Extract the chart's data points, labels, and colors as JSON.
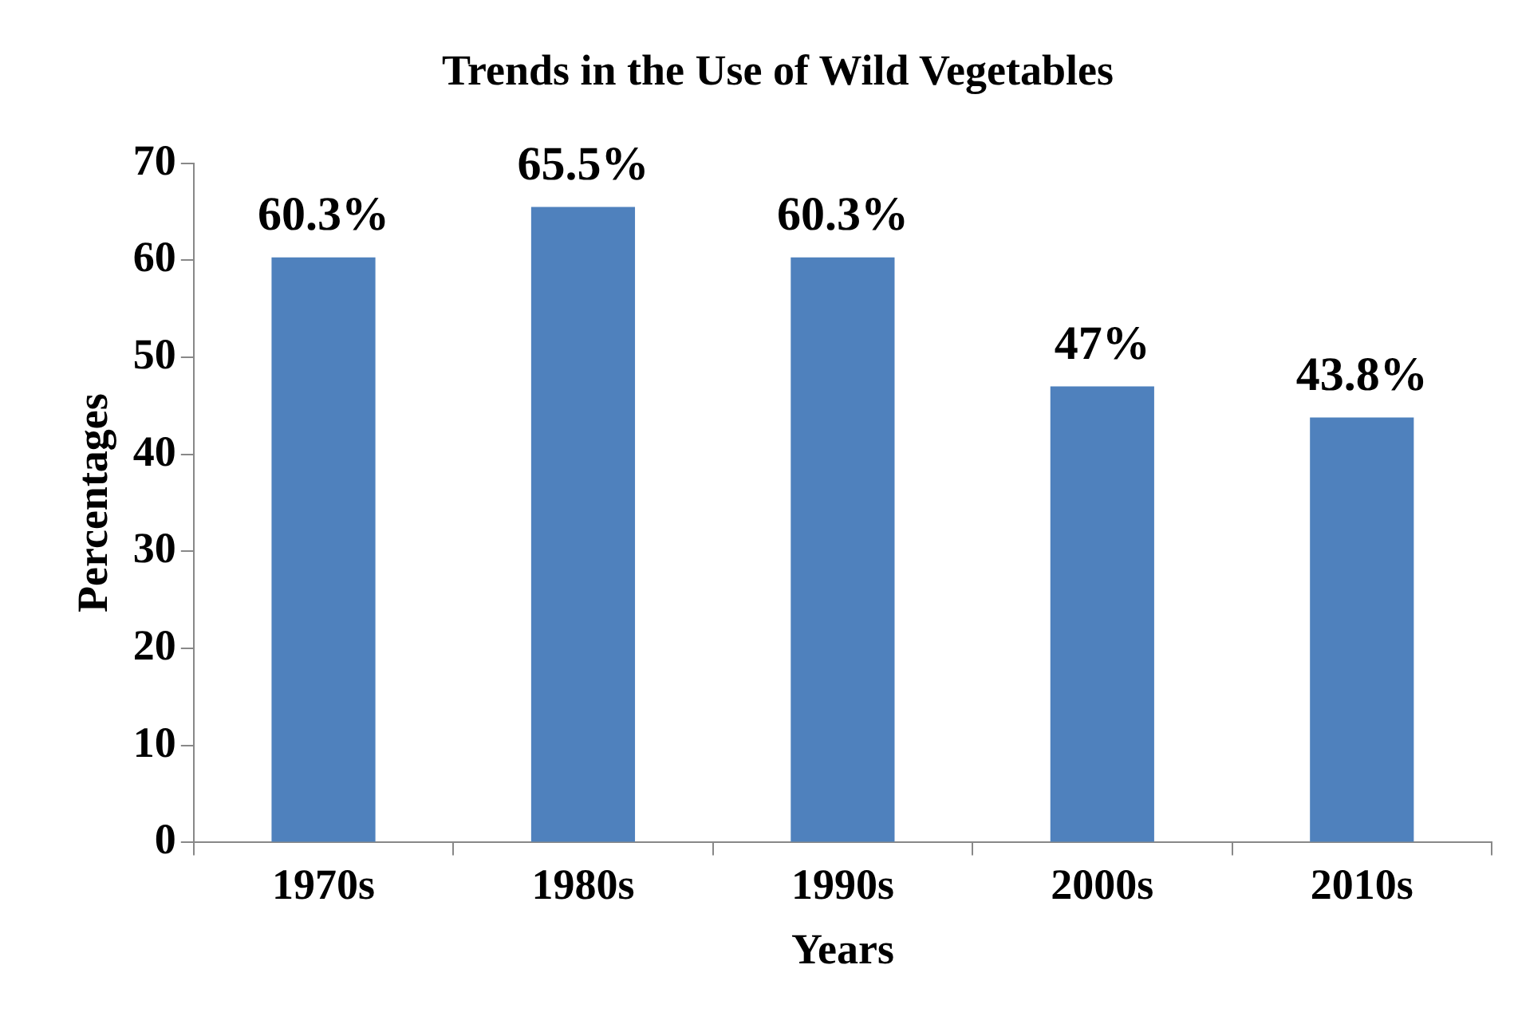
{
  "chart_data": {
    "type": "bar",
    "title": "Trends in the Use of Wild Vegetables",
    "xlabel": "Years",
    "ylabel": "Percentages",
    "categories": [
      "1970s",
      "1980s",
      "1990s",
      "2000s",
      "2010s"
    ],
    "values": [
      60.3,
      65.5,
      60.3,
      47,
      43.8
    ],
    "value_labels": [
      "60.3%",
      "65.5%",
      "60.3%",
      "47%",
      "43.8%"
    ],
    "color": "#4f81bd",
    "ylim": [
      0,
      70
    ],
    "yticks": [
      0,
      10,
      20,
      30,
      40,
      50,
      60,
      70
    ],
    "grid": false,
    "legend": false
  }
}
